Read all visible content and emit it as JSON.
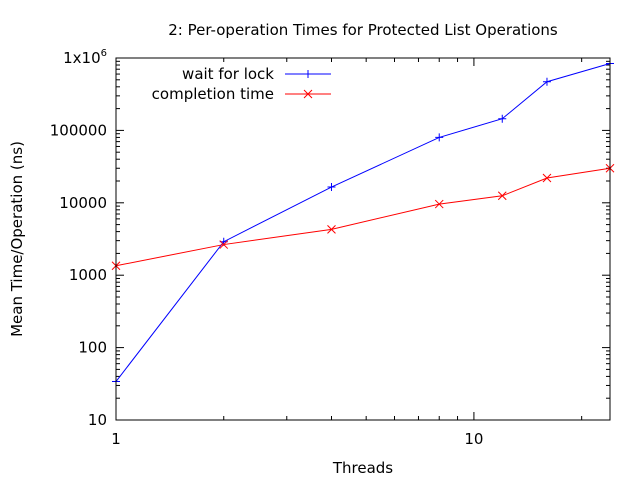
{
  "chart_data": {
    "type": "line",
    "title": "2: Per-operation Times for Protected List Operations",
    "xlabel": "Threads",
    "ylabel": "Mean Time/Operation (ns)",
    "x_scale": "log",
    "y_scale": "log",
    "xlim": [
      1,
      24
    ],
    "ylim": [
      10,
      1000000
    ],
    "x_ticks": [
      {
        "value": 1,
        "label": "1"
      },
      {
        "value": 10,
        "label": "10"
      }
    ],
    "y_ticks": [
      {
        "value": 10,
        "label": "10"
      },
      {
        "value": 100,
        "label": "100"
      },
      {
        "value": 1000,
        "label": "1000"
      },
      {
        "value": 10000,
        "label": "10000"
      },
      {
        "value": 100000,
        "label": "100000"
      },
      {
        "value": 1000000,
        "label": "1x10",
        "sup": "6"
      }
    ],
    "legend_position": "top-left",
    "grid": false,
    "series": [
      {
        "name": "wait for lock",
        "color": "#0000ff",
        "marker": "plus",
        "x": [
          1,
          2,
          4,
          8,
          12,
          16,
          24
        ],
        "values": [
          34,
          2900,
          16500,
          80000,
          145000,
          470000,
          840000
        ]
      },
      {
        "name": "completion time",
        "color": "#ff0000",
        "marker": "cross",
        "x": [
          1,
          2,
          4,
          8,
          12,
          16,
          24
        ],
        "values": [
          1350,
          2650,
          4300,
          9600,
          12500,
          22000,
          30000
        ]
      }
    ]
  }
}
